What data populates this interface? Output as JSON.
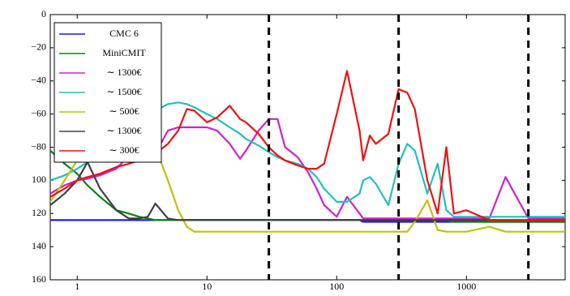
{
  "chart_data": {
    "type": "line",
    "x": [
      0.62,
      0.8,
      1,
      1.2,
      1.5,
      2,
      2.5,
      3,
      3.5,
      4,
      5,
      6,
      7,
      8,
      10,
      12,
      15,
      18,
      20,
      25,
      30,
      35,
      40,
      50,
      60,
      70,
      80,
      100,
      120,
      150,
      160,
      180,
      200,
      250,
      300,
      350,
      400,
      500,
      600,
      700,
      800,
      1000,
      1500,
      2000,
      3000,
      5000,
      5760
    ],
    "series": [
      {
        "name": "CMC 6",
        "color": "#1f1fd0",
        "values": [
          -124,
          -124,
          -124,
          -124,
          -124,
          -124,
          -124,
          -124,
          -124,
          -124,
          -124,
          -124,
          -124,
          -124,
          -124,
          -124,
          -124,
          -124,
          -124,
          -124,
          -124,
          -124,
          -124,
          -124,
          -124,
          -124,
          -124,
          -124,
          -124,
          -124,
          -125,
          -125,
          -125,
          -125,
          -125,
          -125,
          -125,
          -125,
          -125,
          -125,
          -125,
          -125,
          -125,
          -125,
          -125,
          -125,
          -125
        ]
      },
      {
        "name": "MiniCMIT",
        "color": "#108010",
        "values": [
          -82,
          -90,
          -96,
          -103,
          -110,
          -118,
          -120,
          -122,
          -123,
          -124,
          -124,
          -124,
          -124,
          -124,
          -124,
          -124,
          -124,
          -124,
          -124,
          -124,
          -124,
          -124,
          -124,
          -124,
          -124,
          -124,
          -124,
          -124,
          -124,
          -124,
          -124,
          -124,
          -124,
          -124,
          -124,
          -124,
          -124,
          -124,
          -124,
          -124,
          -125,
          -125,
          -125,
          -125,
          -125,
          -125,
          -125
        ]
      },
      {
        "name": "∼ 1300€",
        "color": "#d020d0",
        "values": [
          -108,
          -103,
          -100,
          -99,
          -97,
          -93,
          -85,
          -68,
          -75,
          -84,
          -70,
          -68,
          -68,
          -68,
          -68,
          -70,
          -78,
          -87,
          -82,
          -70,
          -63,
          -63,
          -80,
          -86,
          -95,
          -105,
          -115,
          -122,
          -110,
          -120,
          -123,
          -123,
          -123,
          -123,
          -123,
          -123,
          -123,
          -123,
          -123,
          -123,
          -123,
          -123,
          -123,
          -98,
          -123,
          -123,
          -123
        ]
      },
      {
        "name": "∼ 1500€",
        "color": "#20c0c0",
        "values": [
          -100,
          -97,
          -93,
          -89,
          -85,
          -75,
          -67,
          -62,
          -60,
          -58,
          -54,
          -53,
          -54,
          -56,
          -60,
          -63,
          -68,
          -72,
          -75,
          -79,
          -83,
          -86,
          -88,
          -90,
          -93,
          -98,
          -105,
          -113,
          -113,
          -108,
          -100,
          -98,
          -102,
          -115,
          -90,
          -78,
          -82,
          -108,
          -90,
          -118,
          -122,
          -122,
          -122,
          -122,
          -122,
          -122,
          -122
        ]
      },
      {
        "name": "∼ 500€",
        "color": "#c0c010",
        "values": [
          -113,
          -100,
          -88,
          -80,
          -72,
          -66,
          -63,
          -64,
          -70,
          -80,
          -100,
          -118,
          -128,
          -131,
          -131,
          -131,
          -131,
          -131,
          -131,
          -131,
          -131,
          -131,
          -131,
          -131,
          -131,
          -131,
          -131,
          -131,
          -131,
          -131,
          -131,
          -131,
          -131,
          -131,
          -131,
          -131,
          -125,
          -112,
          -130,
          -131,
          -131,
          -131,
          -128,
          -131,
          -131,
          -131,
          -131
        ]
      },
      {
        "name": "∼ 1300€",
        "color": "#404040",
        "values": [
          -115,
          -108,
          -100,
          -89,
          -105,
          -118,
          -123,
          -123,
          -122,
          -114,
          -123,
          -124,
          -124,
          -124,
          -124,
          -124,
          -124,
          -124,
          -124,
          -124,
          -124,
          -124,
          -124,
          -124,
          -124,
          -124,
          -124,
          -124,
          -124,
          -124,
          -124,
          -124,
          -124,
          -124,
          -124,
          -124,
          -124,
          -124,
          -124,
          -124,
          -124,
          -124,
          -124,
          -124,
          -124,
          -124,
          -124
        ]
      },
      {
        "name": "∼ 300€",
        "color": "#f01010",
        "values": [
          -110,
          -105,
          -100,
          -98,
          -96,
          -92,
          -90,
          -88,
          -86,
          -84,
          -78,
          -70,
          -57,
          -58,
          -65,
          -62,
          -55,
          -63,
          -65,
          -72,
          -80,
          -85,
          -88,
          -91,
          -93,
          -93,
          -90,
          -60,
          -34,
          -70,
          -88,
          -73,
          -78,
          -72,
          -45,
          -47,
          -57,
          -100,
          -120,
          -80,
          -120,
          -118,
          -124,
          -124,
          -124,
          -124,
          -124
        ]
      }
    ],
    "xlim": [
      0.62,
      5760
    ],
    "xscale": "log",
    "xticks": [
      1,
      10,
      100,
      1000
    ],
    "ylim": [
      -160,
      0
    ],
    "yticks": [
      0,
      {
        "value": -20,
        "label": "−20"
      },
      {
        "value": -40,
        "label": "−40"
      },
      {
        "value": -60,
        "label": "−60"
      },
      {
        "value": -80,
        "label": "−80"
      },
      {
        "value": -100,
        "label": "100"
      },
      {
        "value": -120,
        "label": "120"
      },
      {
        "value": -140,
        "label": "140"
      },
      {
        "value": -160,
        "label": "160"
      }
    ],
    "vlines": [
      30,
      300,
      3000
    ],
    "legend": "upper left"
  }
}
